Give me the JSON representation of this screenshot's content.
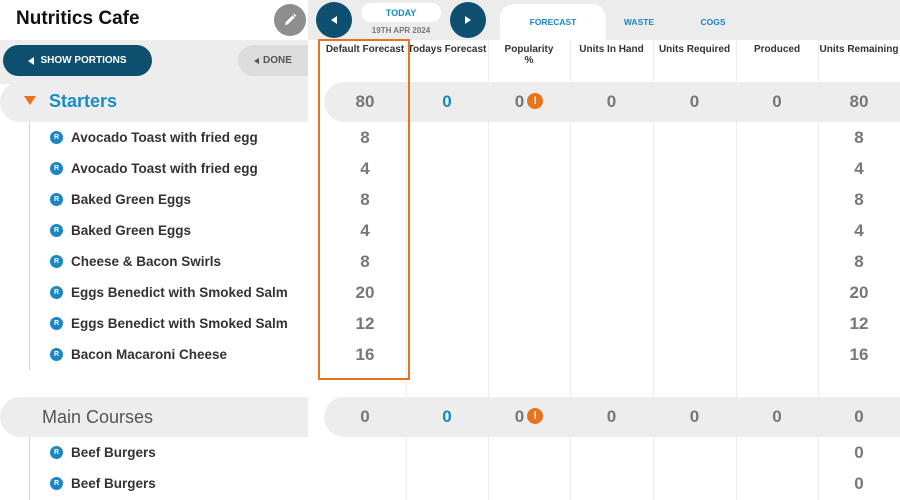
{
  "app": {
    "title": "Nutritics Cafe"
  },
  "toolbar": {
    "show_portions": "SHOW PORTIONS",
    "done": "DONE"
  },
  "nav": {
    "today": "TODAY",
    "date": "19TH APR 2024"
  },
  "tabs": [
    {
      "label": "FORECAST",
      "active": true
    },
    {
      "label": "WASTE"
    },
    {
      "label": "COGS"
    }
  ],
  "columns": [
    "Default Forecast",
    "Todays Forecast",
    "Popularity %",
    "Units In Hand",
    "Units Required",
    "Produced",
    "Units Remaining"
  ],
  "groups": [
    {
      "name": "Starters",
      "summary": {
        "default_forecast": "80",
        "todays_forecast": "0",
        "popularity": "0",
        "units_in_hand": "0",
        "units_required": "0",
        "produced": "0",
        "units_remaining": "80"
      },
      "items": [
        {
          "badge": "R",
          "name": "Avocado Toast with fried egg",
          "default_forecast": "8",
          "units_remaining": "8"
        },
        {
          "badge": "R",
          "name": "Avocado Toast with fried egg",
          "default_forecast": "4",
          "units_remaining": "4"
        },
        {
          "badge": "R",
          "name": "Baked Green Eggs",
          "default_forecast": "8",
          "units_remaining": "8"
        },
        {
          "badge": "R",
          "name": "Baked Green Eggs",
          "default_forecast": "4",
          "units_remaining": "4"
        },
        {
          "badge": "R",
          "name": "Cheese & Bacon Swirls",
          "default_forecast": "8",
          "units_remaining": "8"
        },
        {
          "badge": "R",
          "name": "Eggs Benedict with Smoked Salm",
          "default_forecast": "20",
          "units_remaining": "20"
        },
        {
          "badge": "R",
          "name": "Eggs Benedict with Smoked Salm",
          "default_forecast": "12",
          "units_remaining": "12"
        },
        {
          "badge": "R",
          "name": "Bacon Macaroni Cheese",
          "default_forecast": "16",
          "units_remaining": "16"
        }
      ]
    },
    {
      "name": "Main Courses",
      "summary": {
        "default_forecast": "0",
        "todays_forecast": "0",
        "popularity": "0",
        "units_in_hand": "0",
        "units_required": "0",
        "produced": "0",
        "units_remaining": "0"
      },
      "items": [
        {
          "badge": "R",
          "name": "Beef Burgers",
          "default_forecast": "",
          "units_remaining": "0"
        },
        {
          "badge": "R",
          "name": "Beef Burgers",
          "default_forecast": "",
          "units_remaining": "0"
        }
      ]
    }
  ],
  "icons": {
    "alert": "!",
    "edit": "pencil-icon"
  },
  "colors": {
    "brand_navy": "#0e4e6e",
    "accent_blue": "#1a86c3",
    "highlight_orange": "#e8731e"
  }
}
